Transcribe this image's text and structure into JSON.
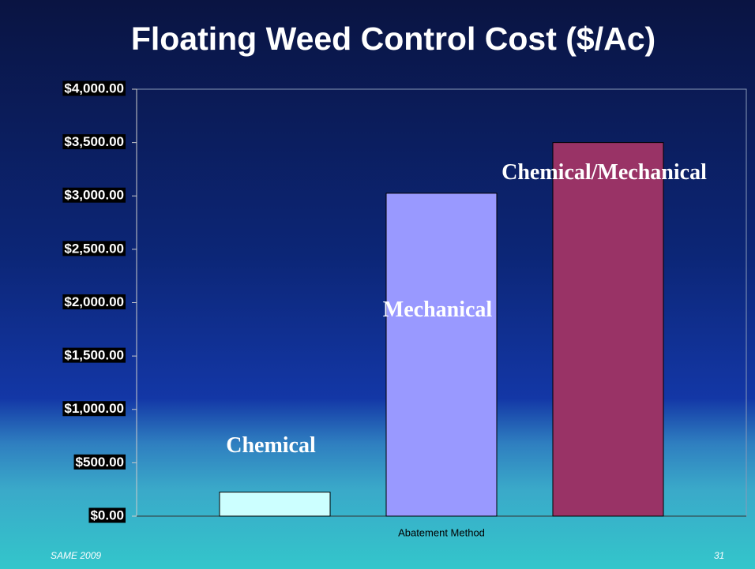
{
  "chart_data": {
    "type": "bar",
    "title": "Floating Weed Control Cost ($/Ac)",
    "x_label": "Abatement Method",
    "categories": [
      null
    ],
    "series": [
      {
        "name": "Chemical",
        "color": "#ccffff",
        "values": [
          225
        ]
      },
      {
        "name": "Mechanical",
        "color": "#9999ff",
        "values": [
          3025
        ]
      },
      {
        "name": "Chemical/Mechanical",
        "color": "#993366",
        "values": [
          3500
        ]
      }
    ],
    "ylim": [
      0,
      4000
    ],
    "yticks": [
      {
        "value": 0,
        "label": "$0.00"
      },
      {
        "value": 500,
        "label": "$500.00"
      },
      {
        "value": 1000,
        "label": "$1,000.00"
      },
      {
        "value": 1500,
        "label": "$1,500.00"
      },
      {
        "value": 2000,
        "label": "$2,000.00"
      },
      {
        "value": 2500,
        "label": "$2,500.00"
      },
      {
        "value": 3000,
        "label": "$3,000.00"
      },
      {
        "value": 3500,
        "label": "$3,500.00"
      },
      {
        "value": 4000,
        "label": "$4,000.00"
      }
    ],
    "grid": false,
    "footer_left": "SAME 2009",
    "footer_right": "31"
  }
}
